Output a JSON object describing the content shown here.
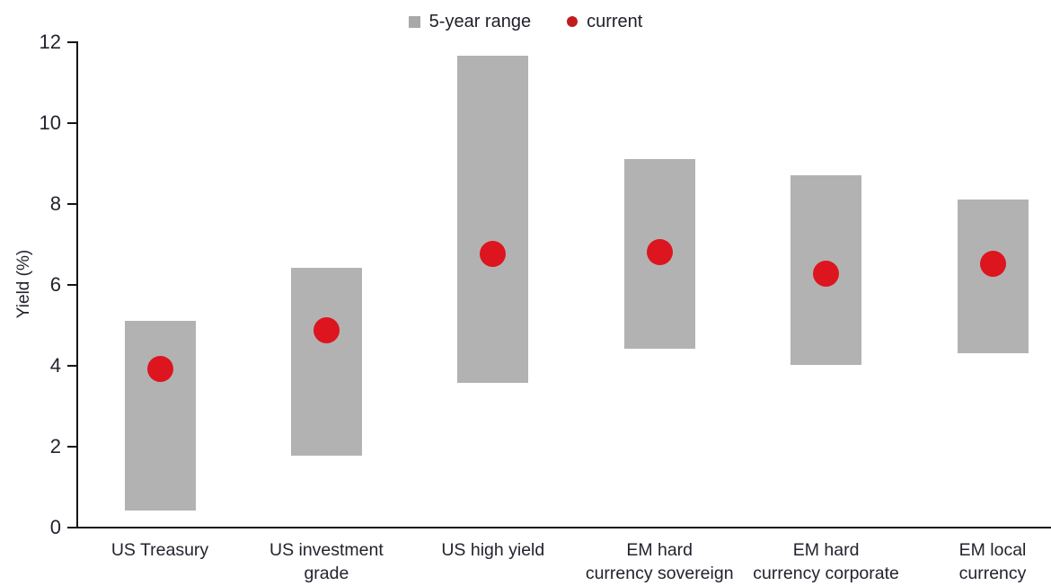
{
  "chart_data": {
    "type": "range_bar",
    "ylabel": "Yield (%)",
    "ylim": [
      0,
      12
    ],
    "yticks": [
      0,
      2,
      4,
      6,
      8,
      10,
      12
    ],
    "grid": false,
    "legend_position": "top-center",
    "legend": [
      {
        "label": "5-year range",
        "marker": "square",
        "color": "#a8a8a8"
      },
      {
        "label": "current",
        "marker": "dot",
        "color": "#c01d1f"
      }
    ],
    "categories": [
      {
        "label": "US Treasury",
        "label_lines": [
          "US Treasury"
        ],
        "range_low": 0.4,
        "range_high": 5.1,
        "current": 3.9
      },
      {
        "label": "US investment grade",
        "label_lines": [
          "US investment",
          "grade"
        ],
        "range_low": 1.75,
        "range_high": 6.4,
        "current": 4.85
      },
      {
        "label": "US high yield",
        "label_lines": [
          "US high yield"
        ],
        "range_low": 3.55,
        "range_high": 11.65,
        "current": 6.75
      },
      {
        "label": "EM hard currency sovereign",
        "label_lines": [
          "EM hard",
          "currency sovereign"
        ],
        "range_low": 4.4,
        "range_high": 9.1,
        "current": 6.8
      },
      {
        "label": "EM hard currency corporate",
        "label_lines": [
          "EM hard",
          "currency corporate"
        ],
        "range_low": 4.0,
        "range_high": 8.7,
        "current": 6.25
      },
      {
        "label": "EM local currency",
        "label_lines": [
          "EM local",
          "currency"
        ],
        "range_low": 4.3,
        "range_high": 8.1,
        "current": 6.5
      }
    ],
    "colors": {
      "bar": "#b2b2b2",
      "dot": "#dd151e",
      "axis": "#141414",
      "text": "#23232e"
    }
  }
}
